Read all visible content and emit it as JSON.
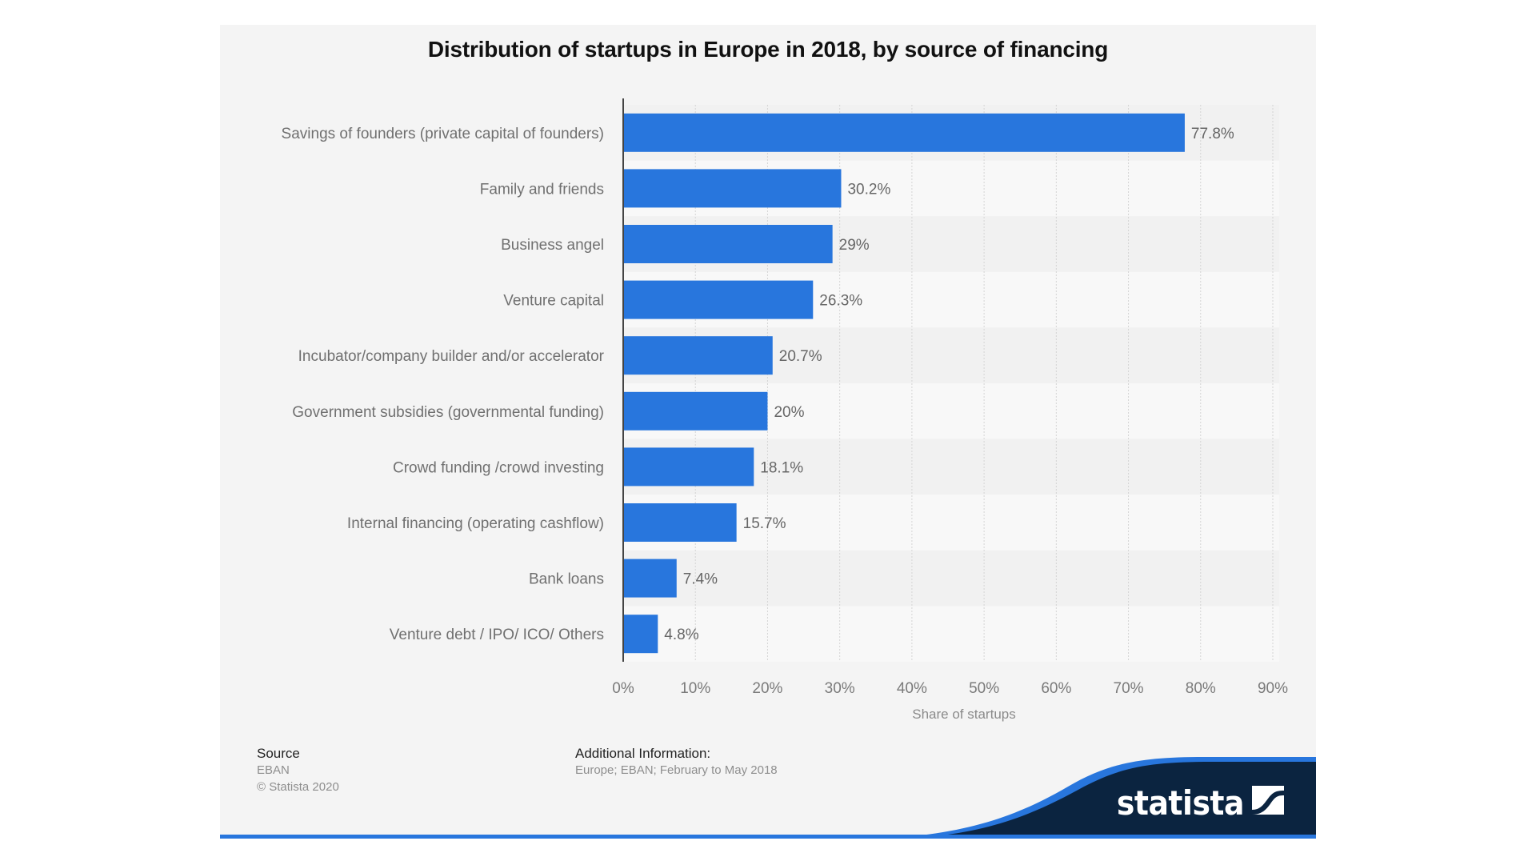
{
  "chart_data": {
    "type": "bar",
    "orientation": "horizontal",
    "title": "Distribution of startups in Europe in 2018, by source of financing",
    "categories": [
      "Savings of founders (private capital of founders)",
      "Family and friends",
      "Business angel",
      "Venture capital",
      "Incubator/company builder and/or accelerator",
      "Government subsidies (governmental funding)",
      "Crowd funding /crowd investing",
      "Internal financing (operating cashflow)",
      "Bank loans",
      "Venture debt / IPO/ ICO/ Others"
    ],
    "values": [
      77.8,
      30.2,
      29,
      26.3,
      20.7,
      20,
      18.1,
      15.7,
      7.4,
      4.8
    ],
    "value_labels": [
      "77.8%",
      "30.2%",
      "29%",
      "26.3%",
      "20.7%",
      "20%",
      "18.1%",
      "15.7%",
      "7.4%",
      "4.8%"
    ],
    "xlabel": "Share of startups",
    "ylabel": "",
    "xlim": [
      0,
      90
    ],
    "xticks": [
      0,
      10,
      20,
      30,
      40,
      50,
      60,
      70,
      80,
      90
    ],
    "xtick_labels": [
      "0%",
      "10%",
      "20%",
      "30%",
      "40%",
      "50%",
      "60%",
      "70%",
      "80%",
      "90%"
    ],
    "grid": true,
    "bar_color": "#2876dd"
  },
  "footer": {
    "source_heading": "Source",
    "source_name": "EBAN",
    "copyright": "© Statista 2020",
    "info_heading": "Additional Information:",
    "info_text": "Europe; EBAN; February to May 2018"
  },
  "brand": {
    "name": "statista",
    "logo_icon": "statista-logo-icon",
    "dark_color": "#0b2440",
    "accent_color": "#2876dd"
  }
}
